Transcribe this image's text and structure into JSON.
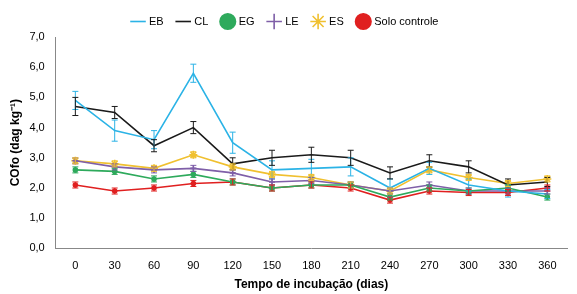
{
  "chart_data": {
    "type": "line",
    "x_label": "Tempo de incubação (dias)",
    "y_label": "COfo (dag kg⁻¹)",
    "categories": [
      "0",
      "30",
      "60",
      "90",
      "120",
      "150",
      "180",
      "210",
      "240",
      "270",
      "300",
      "330",
      "360"
    ],
    "ylim": [
      0,
      7
    ],
    "yticks": [
      {
        "value": 0,
        "label": "0,0"
      },
      {
        "value": 1,
        "label": "1,0"
      },
      {
        "value": 2,
        "label": "2,0"
      },
      {
        "value": 3,
        "label": "3,0"
      },
      {
        "value": 4,
        "label": "4,0"
      },
      {
        "value": 5,
        "label": "5,0"
      },
      {
        "value": 6,
        "label": "6,0"
      },
      {
        "value": 7,
        "label": "7,0"
      }
    ],
    "grid": false,
    "legend": "top",
    "series": [
      {
        "name": "EB",
        "color": "#2bb3e6",
        "marker": "none",
        "values": [
          4.9,
          3.9,
          3.6,
          5.8,
          3.5,
          2.6,
          2.65,
          2.7,
          2.0,
          2.65,
          2.1,
          1.9,
          1.8
        ],
        "errors": [
          0.3,
          0.35,
          0.3,
          0.3,
          0.35,
          0.3,
          0.3,
          0.3,
          0.3,
          0.2,
          0.2,
          0.2,
          0.15
        ]
      },
      {
        "name": "CL",
        "color": "#1a1a1a",
        "marker": "none",
        "values": [
          4.7,
          4.5,
          3.4,
          4.0,
          2.8,
          3.0,
          3.1,
          3.0,
          2.5,
          2.9,
          2.7,
          2.1,
          2.2
        ],
        "errors": [
          0.3,
          0.2,
          0.2,
          0.2,
          0.2,
          0.25,
          0.25,
          0.25,
          0.2,
          0.2,
          0.2,
          0.2,
          0.15
        ]
      },
      {
        "name": "EG",
        "color": "#2eaa5c",
        "marker": "circle",
        "values": [
          2.6,
          2.55,
          2.3,
          2.45,
          2.2,
          2.0,
          2.1,
          2.1,
          1.7,
          2.0,
          1.9,
          2.0,
          1.7
        ],
        "errors": [
          0.1,
          0.1,
          0.1,
          0.1,
          0.1,
          0.1,
          0.1,
          0.1,
          0.1,
          0.1,
          0.1,
          0.1,
          0.1
        ]
      },
      {
        "name": "LE",
        "color": "#7f5fa8",
        "marker": "cross",
        "values": [
          2.9,
          2.7,
          2.6,
          2.65,
          2.5,
          2.2,
          2.25,
          2.1,
          1.9,
          2.1,
          1.9,
          1.9,
          1.9
        ],
        "errors": [
          0.1,
          0.1,
          0.1,
          0.1,
          0.1,
          0.1,
          0.1,
          0.1,
          0.1,
          0.1,
          0.1,
          0.1,
          0.1
        ]
      },
      {
        "name": "ES",
        "color": "#f0c030",
        "marker": "star",
        "values": [
          2.9,
          2.8,
          2.65,
          3.1,
          2.7,
          2.45,
          2.35,
          2.1,
          1.9,
          2.6,
          2.35,
          2.15,
          2.3
        ],
        "errors": [
          0.1,
          0.1,
          0.1,
          0.1,
          0.1,
          0.1,
          0.1,
          0.1,
          0.1,
          0.1,
          0.1,
          0.1,
          0.1
        ]
      },
      {
        "name": "Solo controle",
        "color": "#e02020",
        "marker": "circle",
        "values": [
          2.1,
          1.9,
          2.0,
          2.15,
          2.2,
          2.0,
          2.1,
          2.0,
          1.6,
          1.9,
          1.85,
          1.85,
          2.0
        ],
        "errors": [
          0.1,
          0.1,
          0.1,
          0.1,
          0.1,
          0.1,
          0.1,
          0.1,
          0.1,
          0.1,
          0.1,
          0.1,
          0.1
        ]
      }
    ]
  }
}
